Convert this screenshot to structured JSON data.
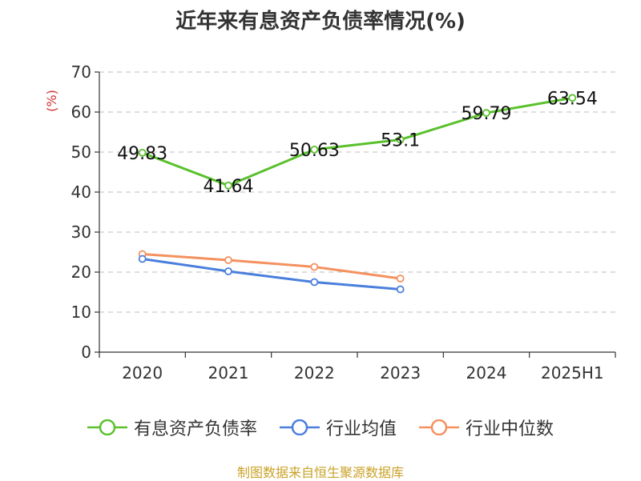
{
  "chart_data": {
    "type": "line",
    "title": "近年来有息资产负债率情况(%)",
    "ylabel": "(%)",
    "categories": [
      "2020",
      "2021",
      "2022",
      "2023",
      "2024",
      "2025H1"
    ],
    "ylim": [
      0,
      70
    ],
    "yticks": [
      0,
      10,
      20,
      30,
      40,
      50,
      60,
      70
    ],
    "grid": "horizontal dashed",
    "legend_position": "bottom",
    "series": [
      {
        "name": "有息资产负债率",
        "color": "#5ac12d",
        "values": [
          49.83,
          41.64,
          50.63,
          53.1,
          59.79,
          63.54
        ],
        "labels": [
          "49.83",
          "41.64",
          "50.63",
          "53.1",
          "59.79",
          "63.54"
        ]
      },
      {
        "name": "行业均值",
        "color": "#4a7fdc",
        "values": [
          23.3,
          20.2,
          17.5,
          15.7,
          null,
          null
        ],
        "labels": []
      },
      {
        "name": "行业中位数",
        "color": "#f4915f",
        "values": [
          24.5,
          23.0,
          21.3,
          18.4,
          null,
          null
        ],
        "labels": []
      }
    ]
  },
  "source": "制图数据来自恒生聚源数据库"
}
